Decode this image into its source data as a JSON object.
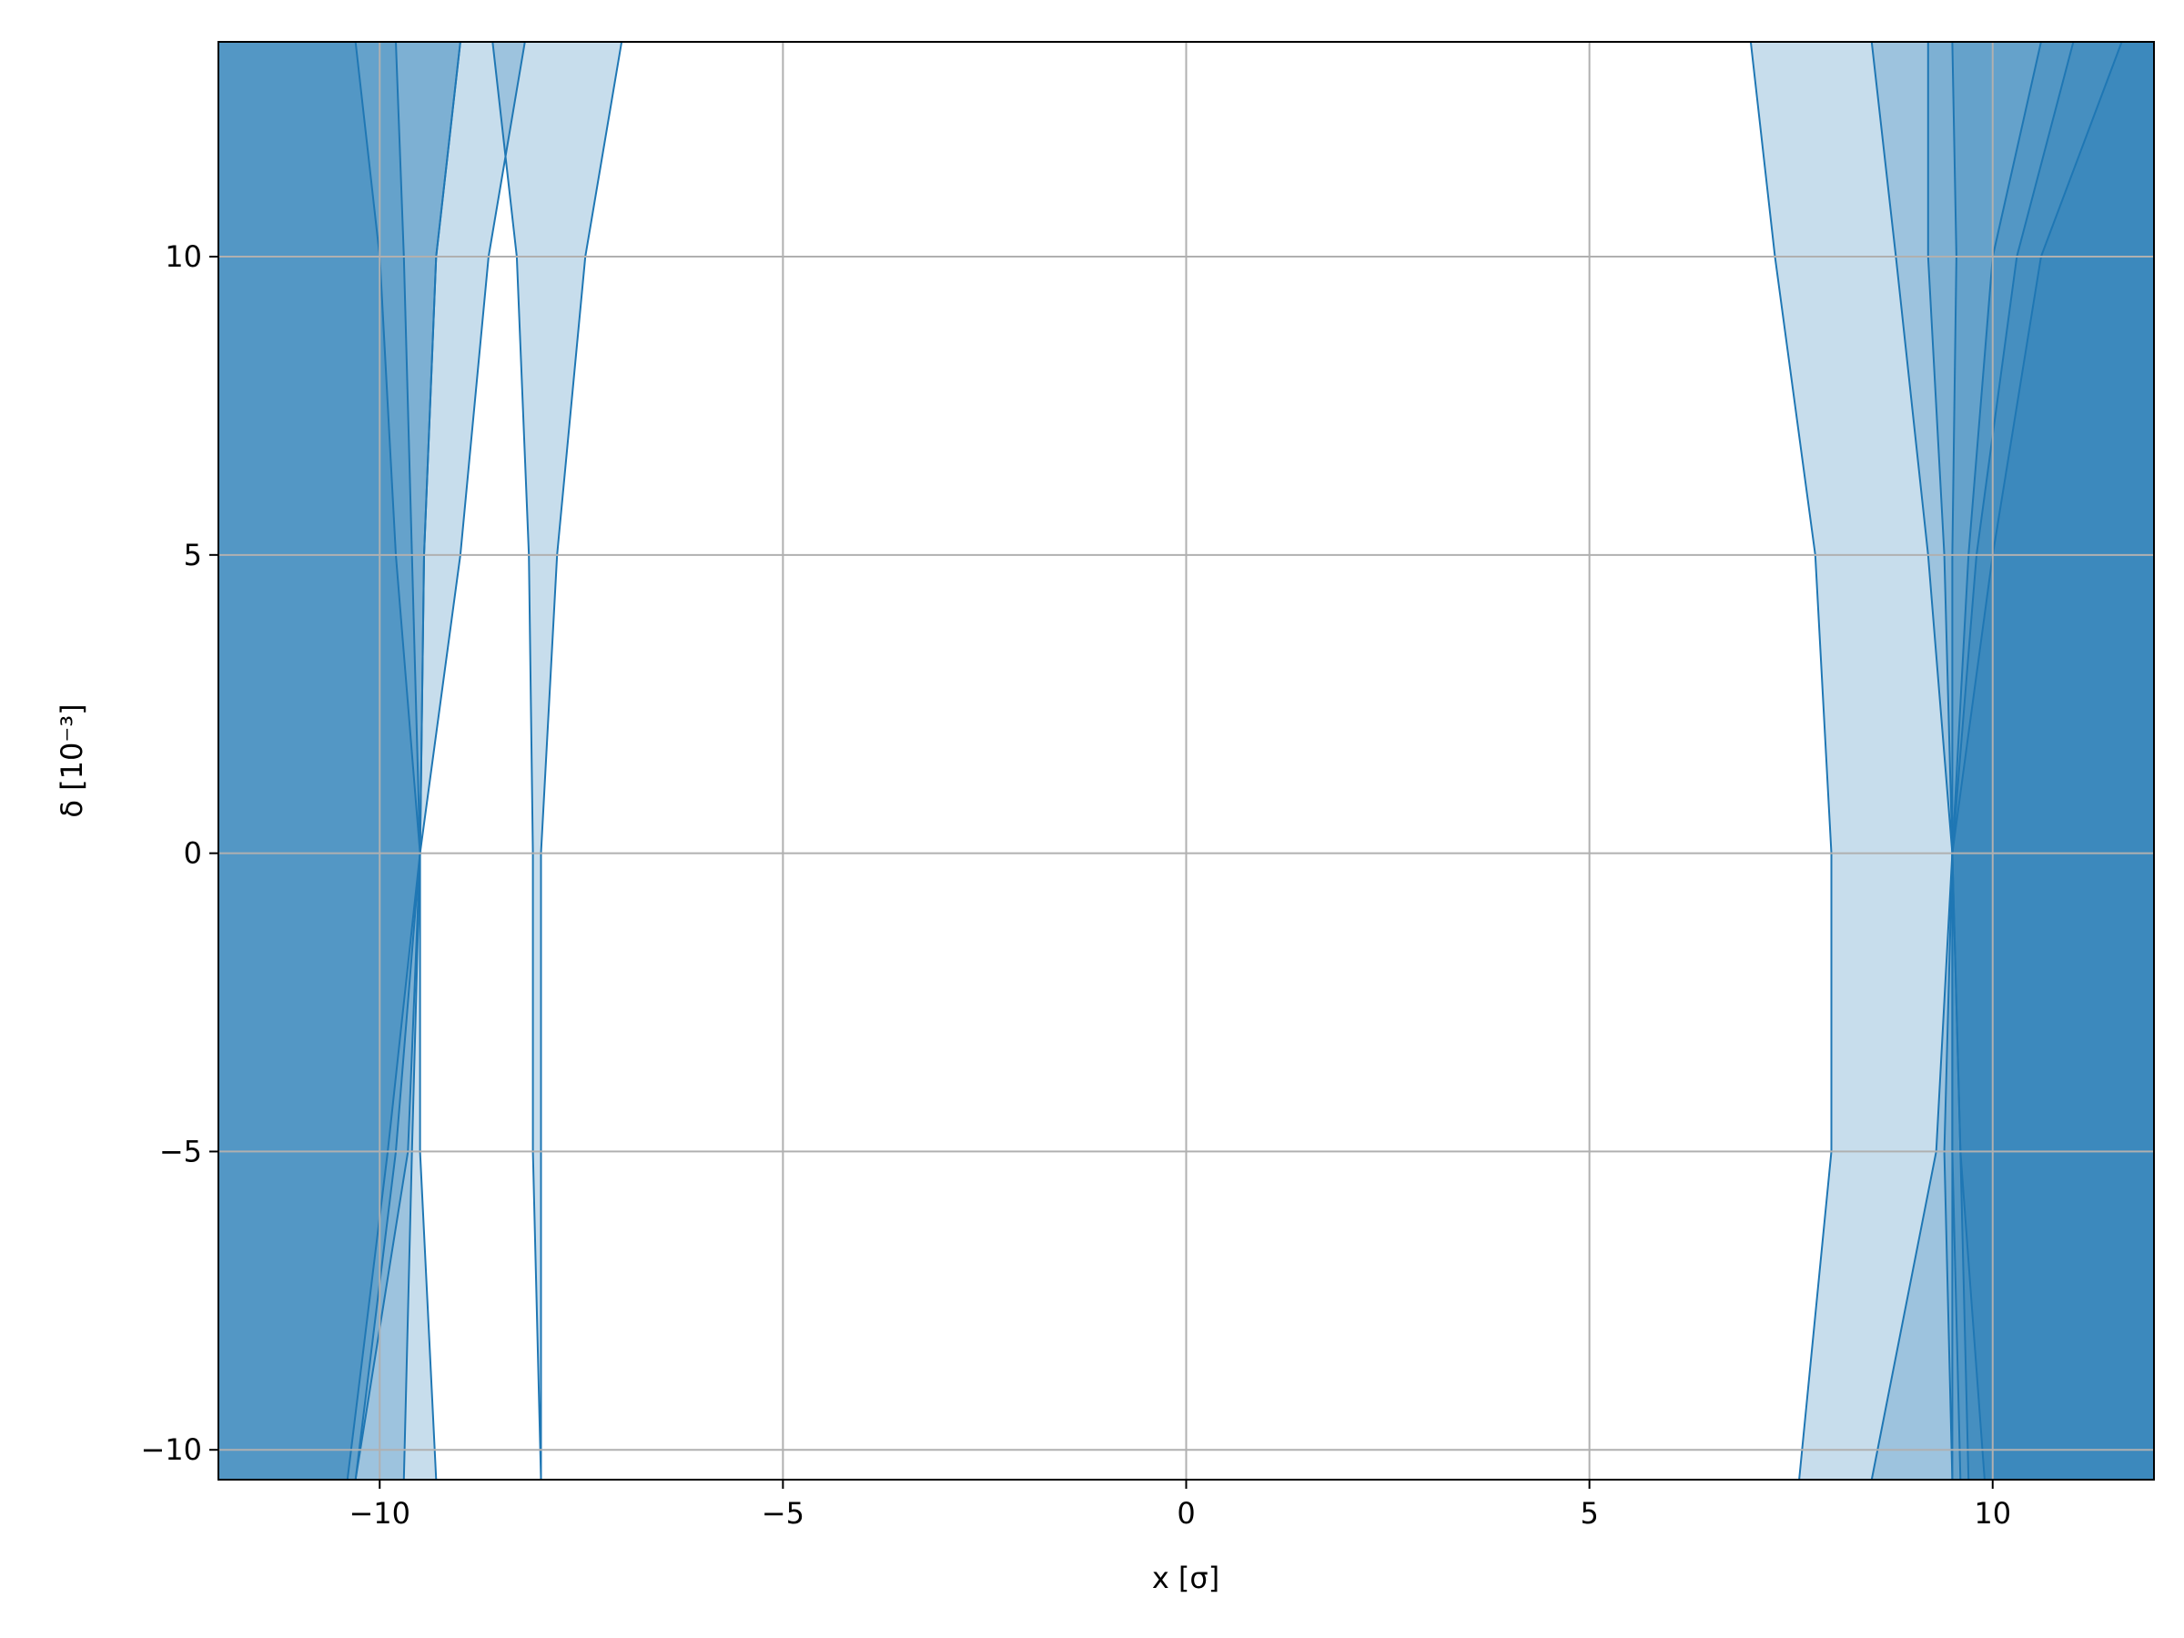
{
  "chart_data": {
    "type": "area",
    "title": "",
    "xlabel": "x [σ]",
    "ylabel": "δ [10⁻³]",
    "xlim": [
      -12,
      12
    ],
    "ylim": [
      -10.5,
      13.6
    ],
    "xticks": [
      -10,
      -5,
      0,
      5,
      10
    ],
    "yticks": [
      -10,
      -5,
      0,
      5,
      10
    ],
    "xtick_labels": [
      "−10",
      "−5",
      "0",
      "5",
      "10"
    ],
    "ytick_labels": [
      "−10",
      "−5",
      "0",
      "5",
      "10"
    ],
    "grid": true,
    "fill_color": "#1f77b4",
    "fill_alpha": 0.25,
    "boundary_color": "#1f77b4",
    "bands": [
      {
        "left": [
          [
            13.6,
            -12.0
          ],
          [
            0,
            -12.0
          ],
          [
            -10.5,
            -12.0
          ]
        ],
        "right": [
          [
            13.6,
            -10.3
          ],
          [
            10,
            -10.0
          ],
          [
            5,
            -9.8
          ],
          [
            0,
            -9.5
          ],
          [
            -5,
            -9.8
          ],
          [
            -10.5,
            -10.3
          ]
        ]
      },
      {
        "left": [
          [
            13.6,
            -12.0
          ],
          [
            0,
            -12.0
          ],
          [
            -10.5,
            -12.0
          ]
        ],
        "right": [
          [
            13.6,
            -9.8
          ],
          [
            10,
            -9.7
          ],
          [
            5,
            -9.6
          ],
          [
            0,
            -9.5
          ],
          [
            -5,
            -9.6
          ],
          [
            -10.5,
            -9.7
          ]
        ]
      },
      {
        "left": [
          [
            13.6,
            -12.0
          ],
          [
            0,
            -12.0
          ],
          [
            -10.5,
            -12.0
          ]
        ],
        "right": [
          [
            13.6,
            -9.0
          ],
          [
            10,
            -9.3
          ],
          [
            5,
            -9.45
          ],
          [
            0,
            -9.5
          ],
          [
            -5,
            -9.65
          ],
          [
            -10.5,
            -10.3
          ]
        ]
      },
      {
        "left": [
          [
            13.6,
            -12.0
          ],
          [
            0,
            -12.0
          ],
          [
            -10.5,
            -12.0
          ]
        ],
        "right": [
          [
            13.6,
            -8.2
          ],
          [
            10,
            -8.65
          ],
          [
            5,
            -9.0
          ],
          [
            0,
            -9.5
          ],
          [
            -5,
            -9.9
          ],
          [
            -10.5,
            -10.4
          ]
        ]
      },
      {
        "left": [
          [
            13.6,
            -8.6
          ],
          [
            10,
            -8.3
          ],
          [
            5,
            -8.15
          ],
          [
            0,
            -8.1
          ],
          [
            -5,
            -8.1
          ],
          [
            -10.5,
            -8.0
          ]
        ],
        "right": [
          [
            13.6,
            -7.0
          ],
          [
            10,
            -7.45
          ],
          [
            5,
            -7.8
          ],
          [
            0,
            -8.0
          ],
          [
            -5,
            -8.0
          ],
          [
            -10.5,
            -8.0
          ]
        ]
      },
      {
        "left": [
          [
            13.6,
            -12.0
          ],
          [
            0,
            -12.0
          ],
          [
            -10.5,
            -12.0
          ]
        ],
        "right": [
          [
            13.6,
            -9.0
          ],
          [
            10,
            -9.3
          ],
          [
            5,
            -9.45
          ],
          [
            0,
            -9.5
          ],
          [
            -5,
            -9.5
          ],
          [
            -10.5,
            -9.3
          ]
        ]
      },
      {
        "left": [
          [
            13.6,
            7.0
          ],
          [
            10,
            7.3
          ],
          [
            5,
            7.8
          ],
          [
            0,
            8.0
          ],
          [
            -5,
            8.0
          ],
          [
            -10.5,
            7.6
          ]
        ],
        "right": [
          [
            13.6,
            12.0
          ],
          [
            0,
            12.0
          ],
          [
            -10.5,
            12.0
          ]
        ]
      },
      {
        "left": [
          [
            13.6,
            8.5
          ],
          [
            10,
            8.8
          ],
          [
            5,
            9.2
          ],
          [
            0,
            9.5
          ],
          [
            -5,
            9.6
          ],
          [
            -10.5,
            9.7
          ]
        ],
        "right": [
          [
            13.6,
            12.0
          ],
          [
            0,
            12.0
          ],
          [
            -10.5,
            12.0
          ]
        ]
      },
      {
        "left": [
          [
            13.6,
            9.5
          ],
          [
            10,
            9.55
          ],
          [
            5,
            9.5
          ],
          [
            0,
            9.5
          ],
          [
            -5,
            9.6
          ],
          [
            -10.5,
            9.9
          ]
        ],
        "right": [
          [
            13.6,
            12.0
          ],
          [
            0,
            12.0
          ],
          [
            -10.5,
            12.0
          ]
        ]
      },
      {
        "left": [
          [
            13.6,
            9.2
          ],
          [
            10,
            9.2
          ],
          [
            5,
            9.4
          ],
          [
            0,
            9.5
          ],
          [
            -5,
            9.5
          ],
          [
            -10.5,
            9.5
          ]
        ],
        "right": [
          [
            13.6,
            12.0
          ],
          [
            0,
            12.0
          ],
          [
            -10.5,
            12.0
          ]
        ]
      },
      {
        "left": [
          [
            13.6,
            11.0
          ],
          [
            10,
            10.3
          ],
          [
            5,
            9.8
          ],
          [
            0,
            9.5
          ],
          [
            -5,
            9.3
          ],
          [
            -10.5,
            8.5
          ]
        ],
        "right": [
          [
            13.6,
            12.0
          ],
          [
            0,
            12.0
          ],
          [
            -10.5,
            12.0
          ]
        ]
      },
      {
        "left": [
          [
            13.6,
            10.6
          ],
          [
            10,
            10.0
          ],
          [
            5,
            9.7
          ],
          [
            0,
            9.5
          ],
          [
            -5,
            9.5
          ],
          [
            -10.5,
            9.6
          ]
        ],
        "right": [
          [
            13.6,
            12.0
          ],
          [
            0,
            12.0
          ],
          [
            -10.5,
            12.0
          ]
        ]
      },
      {
        "left": [
          [
            13.6,
            11.6
          ],
          [
            10,
            10.6
          ],
          [
            5,
            10.0
          ],
          [
            0,
            9.5
          ],
          [
            -5,
            9.4
          ],
          [
            -10.5,
            9.5
          ]
        ],
        "right": [
          [
            13.6,
            12.0
          ],
          [
            0,
            12.0
          ],
          [
            -10.5,
            12.0
          ]
        ]
      }
    ]
  }
}
